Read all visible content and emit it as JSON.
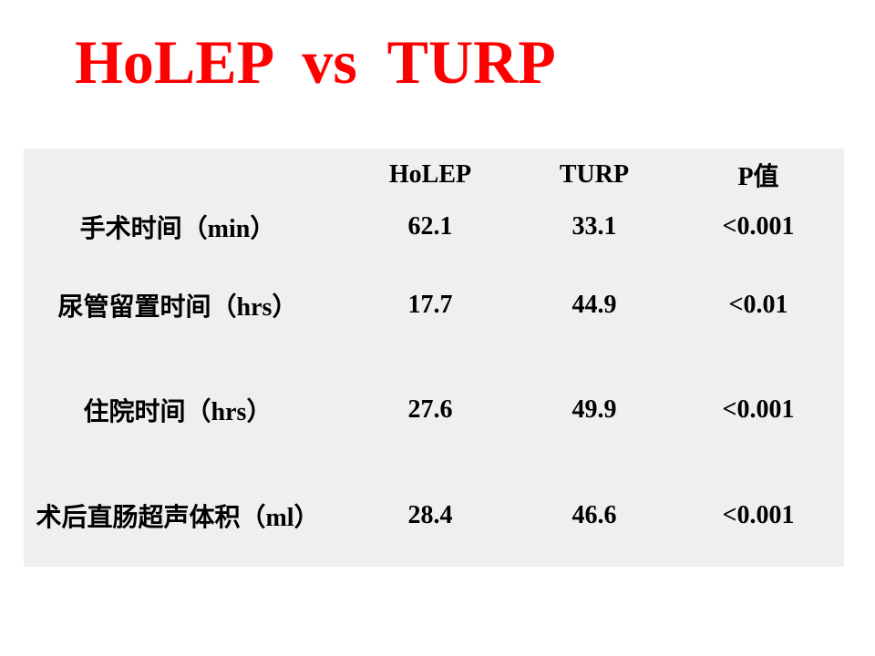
{
  "title": "HoLEP  vs  TURP",
  "table": {
    "header": [
      "HoLEP",
      "TURP",
      "P值"
    ],
    "rows": [
      [
        "手术时间（min）",
        62.1,
        33.1,
        "<0.001"
      ],
      [
        "尿管留置时间（hrs）",
        17.7,
        44.9,
        "<0.01"
      ],
      [
        "住院时间（hrs）",
        27.6,
        49.9,
        "<0.001"
      ],
      [
        "术后直肠超声体积（ml）",
        28.4,
        46.6,
        "<0.001"
      ]
    ]
  }
}
